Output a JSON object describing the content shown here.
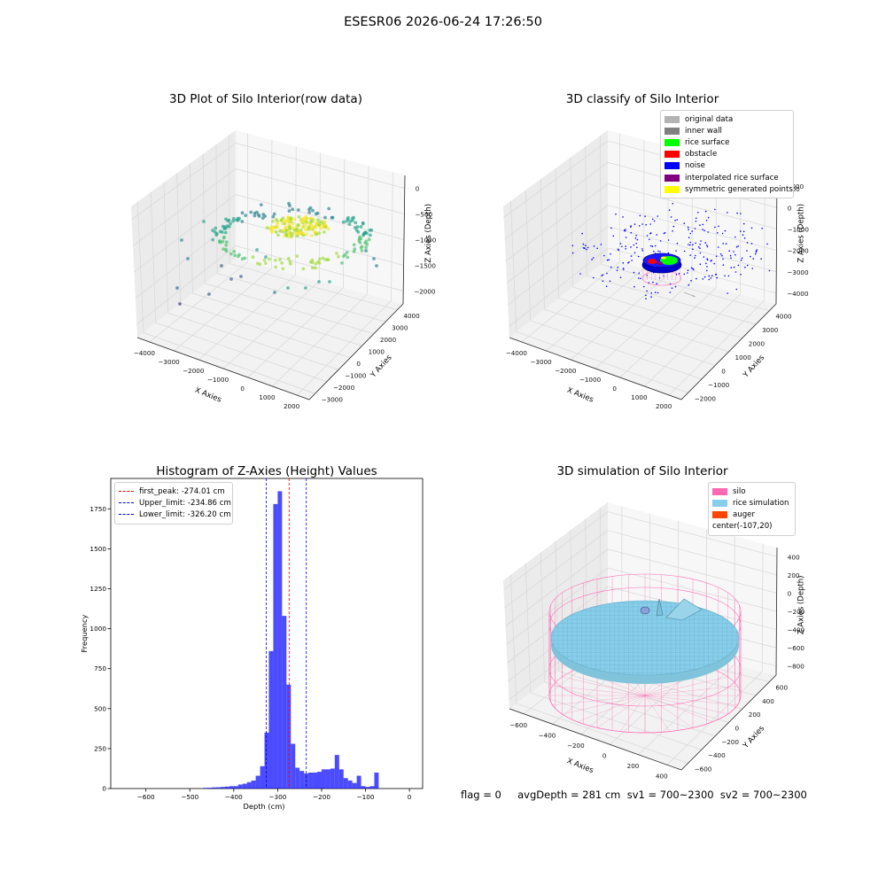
{
  "figure": {
    "suptitle": "ESESR06 2026-06-24 17:26:50",
    "footer_text": "flag = 0     avgDepth = 281 cm  sv1 = 700~2300  sv2 = 700~2300"
  },
  "chart_data": [
    {
      "id": "raw",
      "type": "scatter",
      "title": "3D Plot of Silo Interior(row data)",
      "xlabel": "X Axies",
      "ylabel": "Y Axies",
      "zlabel": "Z Axies (Depth)",
      "x_ticks": [
        "−4000",
        "−3000",
        "−2000",
        "−1000",
        "0",
        "1000",
        "2000"
      ],
      "y_ticks": [
        "−3000",
        "−2000",
        "−1000",
        "0",
        "1000",
        "2000",
        "3000",
        "4000"
      ],
      "z_ticks": [
        "0",
        "−500",
        "−1000",
        "−1500",
        "−2000"
      ],
      "colormap": "viridis",
      "series": [
        {
          "x": [
            -3600,
            -3500,
            -3200,
            -2900,
            -2500,
            -2200,
            -1900,
            -1500,
            -1100,
            -700,
            -300,
            100,
            500,
            900,
            1300
          ],
          "y": [
            -2600,
            -1800,
            -900,
            200,
            1100,
            1900,
            2600,
            3100,
            3300,
            3200,
            2900,
            2300,
            1500,
            600,
            -300
          ],
          "z": [
            -2000,
            -1900,
            -1700,
            -1500,
            -1300,
            -1100,
            -1000,
            -950,
            -900,
            -900,
            -950,
            -1000,
            -1100,
            -1300,
            -1500
          ]
        }
      ]
    },
    {
      "id": "classify",
      "type": "scatter",
      "title": "3D classify of Silo Interior",
      "xlabel": "X Axies",
      "ylabel": "Y Axies",
      "zlabel": "Z Axies (Depth)",
      "x_ticks": [
        "−4000",
        "−3000",
        "−2000",
        "−1000",
        "0",
        "1000",
        "2000"
      ],
      "y_ticks": [
        "−2000",
        "−1000",
        "0",
        "1000",
        "2000",
        "3000",
        "4000"
      ],
      "z_ticks": [
        "1000",
        "0",
        "−1000",
        "−2000",
        "−3000",
        "−4000"
      ],
      "z_top_partial": "000",
      "legend": [
        {
          "label": "original data",
          "color": "#b3b3b3"
        },
        {
          "label": "inner wall",
          "color": "#808080"
        },
        {
          "label": "rice surface",
          "color": "#00ff00"
        },
        {
          "label": "obstacle",
          "color": "#ff0000"
        },
        {
          "label": "noise",
          "color": "#0000ff"
        },
        {
          "label": "interpolated rice surface",
          "color": "#800080"
        },
        {
          "label": "symmetric generated points",
          "color": "#ffff00"
        }
      ]
    },
    {
      "id": "histogram",
      "type": "bar",
      "title": "Histogram of Z-Axies (Height) Values",
      "xlabel": "Depth (cm)",
      "ylabel": "Frequency",
      "xlim": [
        -680,
        30
      ],
      "ylim": [
        0,
        1940
      ],
      "x_ticks": [
        -600,
        -500,
        -400,
        -300,
        -200,
        -100,
        0
      ],
      "y_ticks": [
        0,
        250,
        500,
        750,
        1000,
        1250,
        1500,
        1750
      ],
      "bin_width": 10,
      "bar_color": "#0000ff",
      "bins": [
        {
          "x": -470,
          "value": 4
        },
        {
          "x": -460,
          "value": 5
        },
        {
          "x": -450,
          "value": 7
        },
        {
          "x": -440,
          "value": 8
        },
        {
          "x": -430,
          "value": 10
        },
        {
          "x": -420,
          "value": 12
        },
        {
          "x": -410,
          "value": 15
        },
        {
          "x": -400,
          "value": 15
        },
        {
          "x": -390,
          "value": 25
        },
        {
          "x": -380,
          "value": 30
        },
        {
          "x": -370,
          "value": 40
        },
        {
          "x": -360,
          "value": 50
        },
        {
          "x": -350,
          "value": 80
        },
        {
          "x": -340,
          "value": 140
        },
        {
          "x": -330,
          "value": 350
        },
        {
          "x": -320,
          "value": 860
        },
        {
          "x": -310,
          "value": 1780
        },
        {
          "x": -300,
          "value": 1860
        },
        {
          "x": -290,
          "value": 1080
        },
        {
          "x": -280,
          "value": 650
        },
        {
          "x": -270,
          "value": 280
        },
        {
          "x": -260,
          "value": 130
        },
        {
          "x": -250,
          "value": 110
        },
        {
          "x": -240,
          "value": 95
        },
        {
          "x": -230,
          "value": 100
        },
        {
          "x": -220,
          "value": 100
        },
        {
          "x": -210,
          "value": 105
        },
        {
          "x": -200,
          "value": 120
        },
        {
          "x": -190,
          "value": 120
        },
        {
          "x": -180,
          "value": 125
        },
        {
          "x": -170,
          "value": 210
        },
        {
          "x": -160,
          "value": 120
        },
        {
          "x": -150,
          "value": 65
        },
        {
          "x": -140,
          "value": 50
        },
        {
          "x": -130,
          "value": 35
        },
        {
          "x": -120,
          "value": 80
        },
        {
          "x": -110,
          "value": 15
        },
        {
          "x": -100,
          "value": 10
        },
        {
          "x": -90,
          "value": 15
        },
        {
          "x": -80,
          "value": 100
        }
      ],
      "vlines": [
        {
          "label": "first_peak: -274.01 cm",
          "x": -274.01,
          "color": "#ff0000"
        },
        {
          "label": "Upper_limit: -234.86 cm",
          "x": -234.86,
          "color": "#0000ff"
        },
        {
          "label": "Lower_limit: -326.20 cm",
          "x": -326.2,
          "color": "#0000ff"
        }
      ]
    },
    {
      "id": "simulation",
      "type": "scatter",
      "title": "3D simulation of Silo Interior",
      "xlabel": "X Axies",
      "ylabel": "Y Axies",
      "zlabel": "Z Axies (Depth)",
      "x_ticks": [
        "−600",
        "−400",
        "−200",
        "0",
        "200",
        "400"
      ],
      "y_ticks": [
        "−600",
        "−400",
        "−200",
        "0",
        "200",
        "400",
        "600"
      ],
      "z_ticks": [
        "400",
        "200",
        "0",
        "−200",
        "−400",
        "−600",
        "−800"
      ],
      "legend": [
        {
          "label": "silo",
          "color": "#ff69b4"
        },
        {
          "label": "rice simulation",
          "color": "#87ceeb"
        },
        {
          "label": "auger",
          "color": "#ff4500"
        },
        {
          "label": "center(-107,20)",
          "color": ""
        }
      ]
    }
  ]
}
